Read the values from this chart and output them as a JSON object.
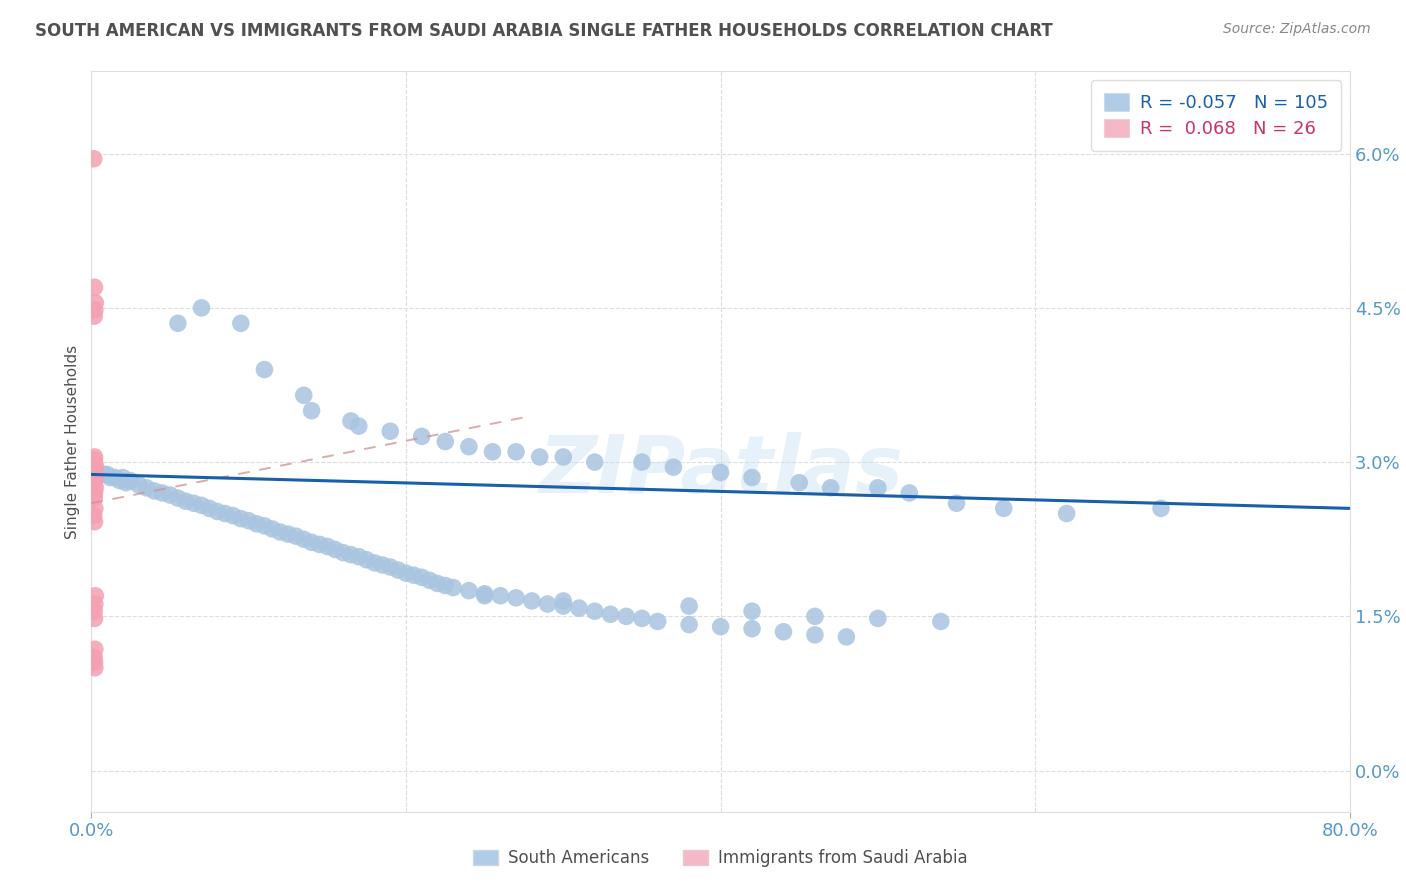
{
  "title": "SOUTH AMERICAN VS IMMIGRANTS FROM SAUDI ARABIA SINGLE FATHER HOUSEHOLDS CORRELATION CHART",
  "source": "Source: ZipAtlas.com",
  "ylabel": "Single Father Households",
  "ytick_values": [
    0.0,
    1.5,
    3.0,
    4.5,
    6.0
  ],
  "xlim": [
    0.0,
    80.0
  ],
  "ylim": [
    -0.4,
    6.8
  ],
  "r_blue": -0.057,
  "n_blue": 105,
  "r_pink": 0.068,
  "n_pink": 26,
  "legend_labels": [
    "South Americans",
    "Immigrants from Saudi Arabia"
  ],
  "watermark": "ZIPatlas",
  "blue_color": "#a8c4e0",
  "pink_color": "#f4a0b0",
  "blue_line_color": "#1a5faa",
  "pink_line_color": "#d09090",
  "title_color": "#505050",
  "axis_label_color": "#5599cc",
  "grid_color": "#dddddd",
  "blue_scatter_x": [
    5.5,
    7.0,
    9.5,
    11.0,
    13.5,
    14.0,
    16.5,
    17.0,
    19.0,
    21.0,
    22.5,
    24.0,
    25.5,
    27.0,
    28.5,
    30.0,
    32.0,
    35.0,
    37.0,
    40.0,
    42.0,
    45.0,
    47.0,
    50.0,
    52.0,
    55.0,
    58.0,
    62.0,
    68.0,
    2.0,
    2.5,
    3.0,
    3.5,
    4.0,
    4.5,
    5.0,
    5.5,
    6.0,
    6.5,
    7.0,
    7.5,
    8.0,
    8.5,
    9.0,
    9.5,
    10.0,
    10.5,
    11.0,
    11.5,
    12.0,
    12.5,
    13.0,
    13.5,
    14.0,
    14.5,
    15.0,
    15.5,
    16.0,
    16.5,
    17.0,
    17.5,
    18.0,
    18.5,
    19.0,
    19.5,
    20.0,
    20.5,
    21.0,
    21.5,
    22.0,
    22.5,
    23.0,
    24.0,
    25.0,
    26.0,
    27.0,
    28.0,
    29.0,
    30.0,
    31.0,
    32.0,
    33.0,
    34.0,
    35.0,
    36.0,
    38.0,
    40.0,
    42.0,
    44.0,
    46.0,
    48.0,
    25.0,
    30.0,
    38.0,
    42.0,
    46.0,
    50.0,
    54.0,
    0.8,
    1.0,
    1.2,
    1.5,
    1.8,
    2.2
  ],
  "blue_scatter_y": [
    4.35,
    4.5,
    4.35,
    3.9,
    3.65,
    3.5,
    3.4,
    3.35,
    3.3,
    3.25,
    3.2,
    3.15,
    3.1,
    3.1,
    3.05,
    3.05,
    3.0,
    3.0,
    2.95,
    2.9,
    2.85,
    2.8,
    2.75,
    2.75,
    2.7,
    2.6,
    2.55,
    2.5,
    2.55,
    2.85,
    2.82,
    2.78,
    2.75,
    2.72,
    2.7,
    2.68,
    2.65,
    2.62,
    2.6,
    2.58,
    2.55,
    2.52,
    2.5,
    2.48,
    2.45,
    2.43,
    2.4,
    2.38,
    2.35,
    2.32,
    2.3,
    2.28,
    2.25,
    2.22,
    2.2,
    2.18,
    2.15,
    2.12,
    2.1,
    2.08,
    2.05,
    2.02,
    2.0,
    1.98,
    1.95,
    1.92,
    1.9,
    1.88,
    1.85,
    1.82,
    1.8,
    1.78,
    1.75,
    1.72,
    1.7,
    1.68,
    1.65,
    1.62,
    1.6,
    1.58,
    1.55,
    1.52,
    1.5,
    1.48,
    1.45,
    1.42,
    1.4,
    1.38,
    1.35,
    1.32,
    1.3,
    1.7,
    1.65,
    1.6,
    1.55,
    1.5,
    1.48,
    1.45,
    2.88,
    2.88,
    2.85,
    2.85,
    2.82,
    2.8
  ],
  "pink_scatter_x": [
    0.15,
    0.2,
    0.25,
    0.22,
    0.18,
    0.2,
    0.18,
    0.22,
    0.25,
    0.2,
    0.22,
    0.18,
    0.25,
    0.2,
    0.18,
    0.22,
    0.15,
    0.2,
    0.25,
    0.22,
    0.18,
    0.2,
    0.22,
    0.18,
    0.2,
    0.22
  ],
  "pink_scatter_y": [
    5.95,
    4.7,
    4.55,
    4.48,
    4.42,
    3.05,
    3.02,
    2.98,
    2.95,
    2.9,
    2.85,
    2.8,
    2.75,
    2.7,
    2.65,
    2.55,
    2.48,
    2.42,
    1.7,
    1.62,
    1.55,
    1.48,
    1.18,
    1.1,
    1.05,
    1.0
  ],
  "blue_line_x": [
    0.0,
    80.0
  ],
  "blue_line_y": [
    2.88,
    2.55
  ],
  "pink_line_x": [
    0.0,
    28.0
  ],
  "pink_line_y": [
    2.6,
    3.45
  ]
}
